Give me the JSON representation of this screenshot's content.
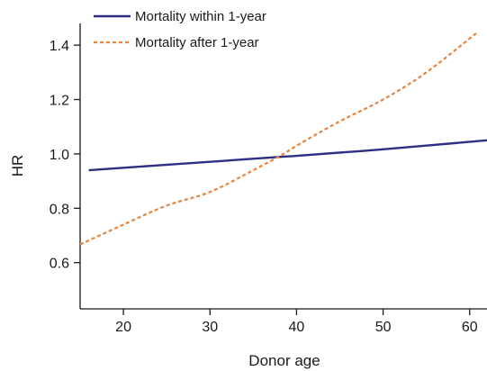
{
  "chart_data": {
    "type": "line",
    "xlabel": "Donor age",
    "ylabel": "HR",
    "xlim": [
      15,
      62
    ],
    "ylim": [
      0.43,
      1.48
    ],
    "x_ticks": [
      20,
      30,
      40,
      50,
      60
    ],
    "y_ticks": [
      0.6,
      0.8,
      1.0,
      1.2,
      1.4
    ],
    "x_tick_labels": [
      "20",
      "30",
      "40",
      "50",
      "60"
    ],
    "y_tick_labels": [
      "0.6",
      "0.8",
      "1.0",
      "1.2",
      "1.4"
    ],
    "grid": false,
    "legend_position": "top-left",
    "series": [
      {
        "name": "Mortality within 1-year",
        "color": "#2e2e82",
        "style": "solid",
        "x": [
          16,
          20,
          30,
          38.5,
          40,
          50,
          62
        ],
        "y": [
          0.94,
          0.949,
          0.971,
          0.99,
          0.993,
          1.017,
          1.05
        ]
      },
      {
        "name": "Mortality after 1-year",
        "color": "#e8843c",
        "style": "dashed",
        "x": [
          15,
          20,
          25,
          30,
          35,
          38.5,
          40,
          45,
          50,
          55,
          61
        ],
        "y": [
          0.667,
          0.74,
          0.81,
          0.86,
          0.94,
          1.0,
          1.03,
          1.12,
          1.2,
          1.3,
          1.45
        ]
      }
    ]
  }
}
